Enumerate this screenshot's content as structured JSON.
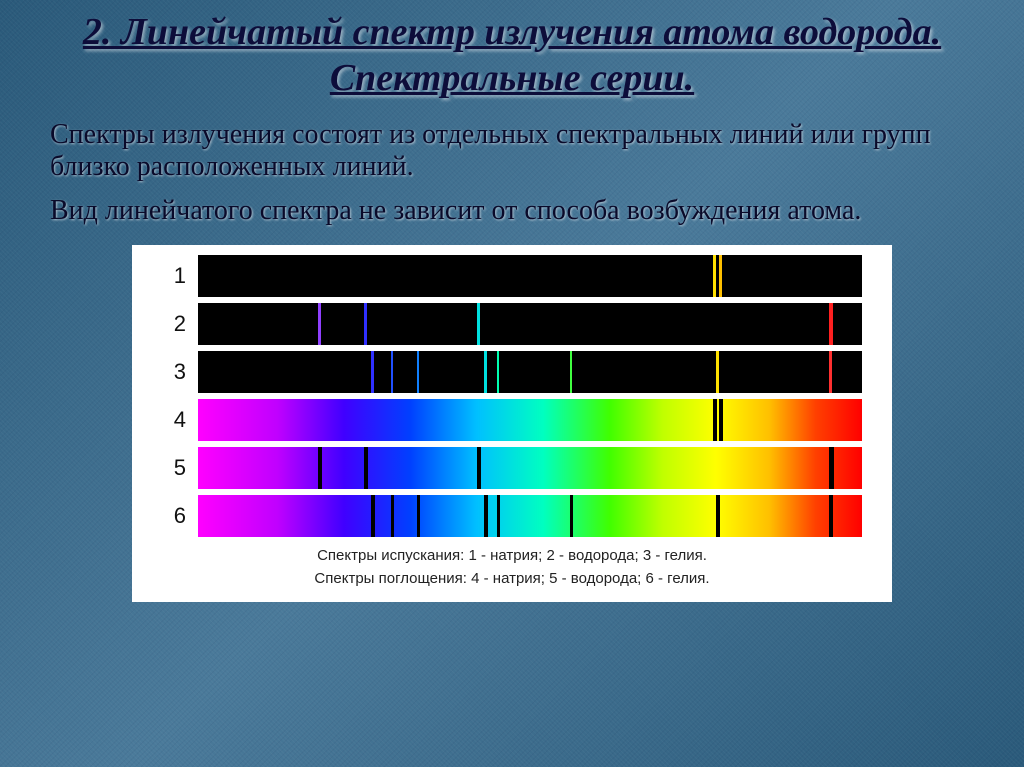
{
  "title": "2. Линейчатый спектр излучения атома водорода. Спектральные серии.",
  "para1": "Спектры излучения  состоят из отдельных спектральных линий или групп близко расположенных линий.",
  "para2": "Вид линейчатого спектра не зависит от способа возбуждения атома.",
  "chart": {
    "background": "#000000",
    "continuous_gradient_stops": [
      {
        "pct": 0,
        "color": "#ff00ff"
      },
      {
        "pct": 12,
        "color": "#c000ff"
      },
      {
        "pct": 22,
        "color": "#4000ff"
      },
      {
        "pct": 32,
        "color": "#0040ff"
      },
      {
        "pct": 42,
        "color": "#00c0ff"
      },
      {
        "pct": 52,
        "color": "#00ffc0"
      },
      {
        "pct": 62,
        "color": "#40ff00"
      },
      {
        "pct": 70,
        "color": "#c0ff00"
      },
      {
        "pct": 78,
        "color": "#ffff00"
      },
      {
        "pct": 86,
        "color": "#ffc000"
      },
      {
        "pct": 93,
        "color": "#ff4000"
      },
      {
        "pct": 100,
        "color": "#ff0000"
      }
    ],
    "rows": [
      {
        "label": "1",
        "type": "emission",
        "lines": [
          {
            "pos": 77.5,
            "color": "#ffe000",
            "width": 3
          },
          {
            "pos": 78.5,
            "color": "#ffc000",
            "width": 3
          }
        ]
      },
      {
        "label": "2",
        "type": "emission",
        "lines": [
          {
            "pos": 18,
            "color": "#9040ff",
            "width": 3
          },
          {
            "pos": 25,
            "color": "#3030ff",
            "width": 3
          },
          {
            "pos": 42,
            "color": "#00e0e0",
            "width": 3
          },
          {
            "pos": 95,
            "color": "#ff2020",
            "width": 4
          }
        ]
      },
      {
        "label": "3",
        "type": "emission",
        "lines": [
          {
            "pos": 26,
            "color": "#3030ff",
            "width": 3
          },
          {
            "pos": 29,
            "color": "#2050ff",
            "width": 2
          },
          {
            "pos": 33,
            "color": "#1080ff",
            "width": 2
          },
          {
            "pos": 43,
            "color": "#00e0e0",
            "width": 3
          },
          {
            "pos": 45,
            "color": "#00ffb0",
            "width": 2
          },
          {
            "pos": 56,
            "color": "#40ff40",
            "width": 2
          },
          {
            "pos": 78,
            "color": "#ffe000",
            "width": 3
          },
          {
            "pos": 95,
            "color": "#ff3030",
            "width": 3
          }
        ]
      },
      {
        "label": "4",
        "type": "absorption",
        "lines": [
          {
            "pos": 77.5,
            "color": "#000000",
            "width": 4
          },
          {
            "pos": 78.5,
            "color": "#000000",
            "width": 4
          }
        ]
      },
      {
        "label": "5",
        "type": "absorption",
        "lines": [
          {
            "pos": 18,
            "color": "#000000",
            "width": 4
          },
          {
            "pos": 25,
            "color": "#000000",
            "width": 4
          },
          {
            "pos": 42,
            "color": "#000000",
            "width": 4
          },
          {
            "pos": 95,
            "color": "#000000",
            "width": 5
          }
        ]
      },
      {
        "label": "6",
        "type": "absorption",
        "lines": [
          {
            "pos": 26,
            "color": "#000000",
            "width": 4
          },
          {
            "pos": 29,
            "color": "#000000",
            "width": 3
          },
          {
            "pos": 33,
            "color": "#000000",
            "width": 3
          },
          {
            "pos": 43,
            "color": "#000000",
            "width": 4
          },
          {
            "pos": 45,
            "color": "#000000",
            "width": 3
          },
          {
            "pos": 56,
            "color": "#000000",
            "width": 3
          },
          {
            "pos": 78,
            "color": "#000000",
            "width": 4
          },
          {
            "pos": 95,
            "color": "#000000",
            "width": 4
          }
        ]
      }
    ],
    "caption_line1": "Спектры испускания: 1 - натрия; 2 - водорода; 3 - гелия.",
    "caption_line2": "Спектры поглощения: 4 - натрия; 5 - водорода; 6 - гелия."
  }
}
